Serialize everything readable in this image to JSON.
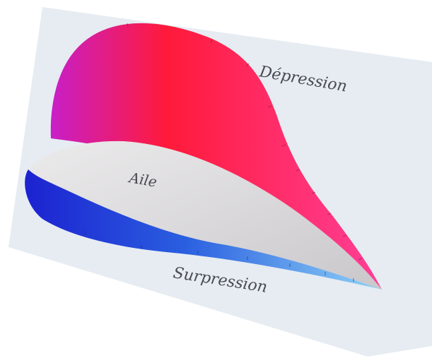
{
  "labels": {
    "depression": "Dépression",
    "wing": "Aile",
    "overpressure": "Surpression"
  },
  "colors": {
    "background": "#e6ecf2",
    "depression_start": "#c81fc8",
    "depression_mid": "#ff1a3a",
    "depression_end": "#ff3f97",
    "wing_fill": "#d8d6d8",
    "overpressure_dark": "#1c22d0",
    "overpressure_light": "#8fd3f6",
    "label_text": "#4a4a52"
  }
}
